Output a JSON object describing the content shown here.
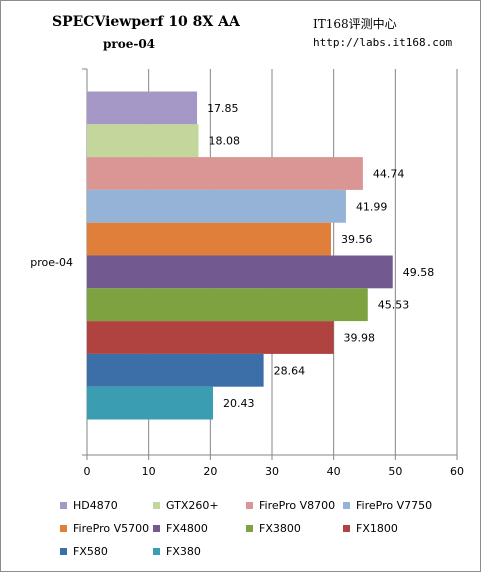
{
  "header": {
    "title_main": "SPECViewperf 10  8X AA",
    "title_sub": "proe-04",
    "site_name": "IT168评测中心",
    "site_url": "http://labs.it168.com"
  },
  "chart_data": {
    "type": "bar",
    "orientation": "horizontal",
    "categories": [
      "proe-04"
    ],
    "series": [
      {
        "name": "HD4870",
        "values": [
          17.85
        ],
        "color": "#a698c6"
      },
      {
        "name": "GTX260+",
        "values": [
          18.08
        ],
        "color": "#c3d69b"
      },
      {
        "name": "FirePro V8700",
        "values": [
          44.74
        ],
        "color": "#d99694"
      },
      {
        "name": "FirePro V7750",
        "values": [
          41.99
        ],
        "color": "#95b3d7"
      },
      {
        "name": "FirePro V5700",
        "values": [
          39.56
        ],
        "color": "#e07f39"
      },
      {
        "name": "FX4800",
        "values": [
          49.58
        ],
        "color": "#72598f"
      },
      {
        "name": "FX3800",
        "values": [
          45.53
        ],
        "color": "#7fa240"
      },
      {
        "name": "FX1800",
        "values": [
          39.98
        ],
        "color": "#b0423f"
      },
      {
        "name": "FX580",
        "values": [
          28.64
        ],
        "color": "#3c6fa8"
      },
      {
        "name": "FX380",
        "values": [
          20.43
        ],
        "color": "#3a9db1"
      }
    ],
    "xlim": [
      0,
      60
    ],
    "xticks": [
      0,
      10,
      20,
      30,
      40,
      50,
      60
    ],
    "grid": true,
    "legend_position": "bottom",
    "data_labels": true
  }
}
